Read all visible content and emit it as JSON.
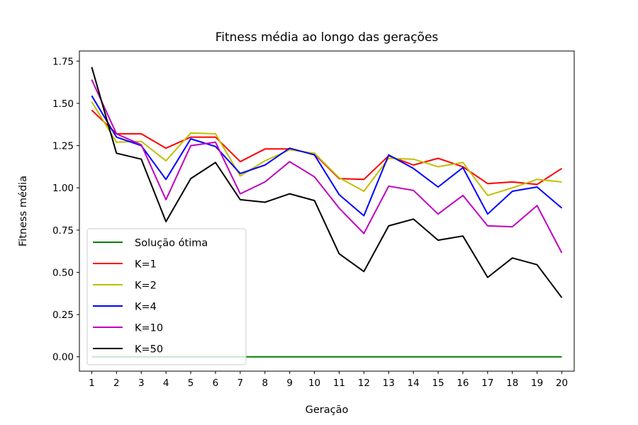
{
  "chart_data": {
    "type": "line",
    "title": "Fitness média ao longo das gerações",
    "xlabel": "Geração",
    "ylabel": "Fitness média",
    "x": [
      1,
      2,
      3,
      4,
      5,
      6,
      7,
      8,
      9,
      10,
      11,
      12,
      13,
      14,
      15,
      16,
      17,
      18,
      19,
      20
    ],
    "xlim": [
      0.5,
      20.5
    ],
    "ylim": [
      -0.085,
      1.81
    ],
    "yticks": [
      0.0,
      0.25,
      0.5,
      0.75,
      1.0,
      1.25,
      1.5,
      1.75
    ],
    "ytick_labels": [
      "0.00",
      "0.25",
      "0.50",
      "0.75",
      "1.00",
      "1.25",
      "1.50",
      "1.75"
    ],
    "grid": false,
    "legend_position": "lower-left",
    "series": [
      {
        "name": "Solução ótima",
        "color": "#008000",
        "values": [
          0,
          0,
          0,
          0,
          0,
          0,
          0,
          0,
          0,
          0,
          0,
          0,
          0,
          0,
          0,
          0,
          0,
          0,
          0,
          0
        ]
      },
      {
        "name": "K=1",
        "color": "#ff0000",
        "values": [
          1.46,
          1.32,
          1.32,
          1.235,
          1.3,
          1.3,
          1.155,
          1.23,
          1.23,
          1.2,
          1.055,
          1.05,
          1.19,
          1.135,
          1.175,
          1.125,
          1.025,
          1.035,
          1.02,
          1.115
        ]
      },
      {
        "name": "K=2",
        "color": "#bfbf00",
        "values": [
          1.51,
          1.27,
          1.275,
          1.16,
          1.325,
          1.32,
          1.07,
          1.16,
          1.225,
          1.205,
          1.06,
          0.98,
          1.175,
          1.17,
          1.125,
          1.15,
          0.955,
          1.0,
          1.05,
          1.035
        ]
      },
      {
        "name": "K=4",
        "color": "#0000ff",
        "values": [
          1.545,
          1.3,
          1.25,
          1.05,
          1.29,
          1.245,
          1.085,
          1.135,
          1.235,
          1.195,
          0.96,
          0.835,
          1.195,
          1.115,
          1.005,
          1.12,
          0.845,
          0.98,
          1.005,
          0.88
        ]
      },
      {
        "name": "K=10",
        "color": "#bf00bf",
        "values": [
          1.64,
          1.32,
          1.255,
          0.93,
          1.25,
          1.27,
          0.965,
          1.035,
          1.155,
          1.065,
          0.88,
          0.73,
          1.01,
          0.985,
          0.845,
          0.955,
          0.775,
          0.77,
          0.895,
          0.615
        ]
      },
      {
        "name": "K=50",
        "color": "#000000",
        "values": [
          1.715,
          1.205,
          1.17,
          0.8,
          1.055,
          1.15,
          0.93,
          0.915,
          0.965,
          0.925,
          0.61,
          0.505,
          0.775,
          0.815,
          0.69,
          0.715,
          0.47,
          0.585,
          0.545,
          0.35
        ]
      }
    ]
  }
}
